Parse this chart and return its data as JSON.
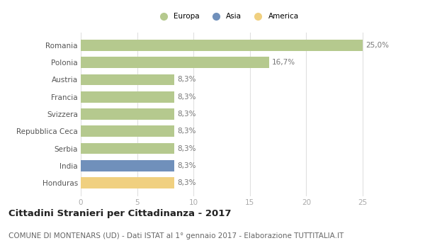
{
  "categories": [
    "Honduras",
    "India",
    "Serbia",
    "Repubblica Ceca",
    "Svizzera",
    "Francia",
    "Austria",
    "Polonia",
    "Romania"
  ],
  "values": [
    8.3,
    8.3,
    8.3,
    8.3,
    8.3,
    8.3,
    8.3,
    16.7,
    25.0
  ],
  "colors": [
    "#f0d080",
    "#7090bb",
    "#b5c98e",
    "#b5c98e",
    "#b5c98e",
    "#b5c98e",
    "#b5c98e",
    "#b5c98e",
    "#b5c98e"
  ],
  "labels": [
    "8,3%",
    "8,3%",
    "8,3%",
    "8,3%",
    "8,3%",
    "8,3%",
    "8,3%",
    "16,7%",
    "25,0%"
  ],
  "legend": [
    {
      "label": "Europa",
      "color": "#b5c98e"
    },
    {
      "label": "Asia",
      "color": "#7090bb"
    },
    {
      "label": "America",
      "color": "#f0d080"
    }
  ],
  "xlim": [
    0,
    26
  ],
  "xticks": [
    0,
    5,
    10,
    15,
    20,
    25
  ],
  "title": "Cittadini Stranieri per Cittadinanza - 2017",
  "subtitle": "COMUNE DI MONTENARS (UD) - Dati ISTAT al 1° gennaio 2017 - Elaborazione TUTTITALIA.IT",
  "background_color": "#ffffff",
  "bar_height": 0.65,
  "grid_color": "#e0e0e0",
  "label_color": "#777777",
  "label_fontsize": 7.5,
  "tick_fontsize": 7.5,
  "title_fontsize": 9.5,
  "subtitle_fontsize": 7.5
}
